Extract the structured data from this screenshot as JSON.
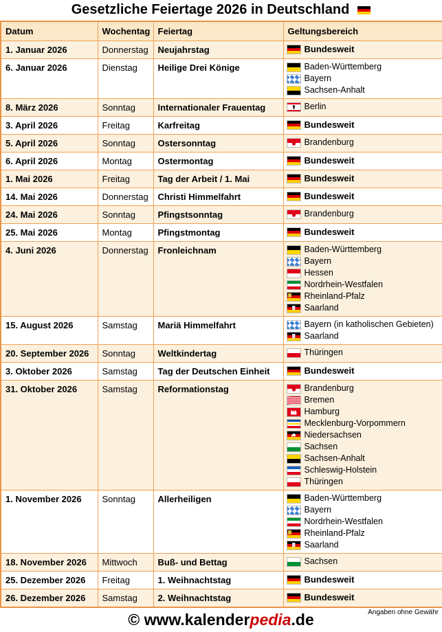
{
  "title": "Gesetzliche Feiertage 2026 in Deutschland",
  "title_flag": "german-flag",
  "table": {
    "columns": [
      "Datum",
      "Wochentag",
      "Feiertag",
      "Geltungsbereich"
    ],
    "rows": [
      {
        "date": "1. Januar 2026",
        "weekday": "Donnerstag",
        "holiday": "Neujahrstag",
        "regions": [
          {
            "flag": "de",
            "name": "Bundesweit",
            "bold": true
          }
        ]
      },
      {
        "date": "6. Januar 2026",
        "weekday": "Dienstag",
        "holiday": "Heilige Drei Könige",
        "regions": [
          {
            "flag": "bw",
            "name": "Baden-Württemberg"
          },
          {
            "flag": "by",
            "name": "Bayern"
          },
          {
            "flag": "st",
            "name": "Sachsen-Anhalt"
          }
        ]
      },
      {
        "date": "8. März 2026",
        "weekday": "Sonntag",
        "holiday": "Internationaler Frauentag",
        "regions": [
          {
            "flag": "be",
            "name": "Berlin"
          }
        ]
      },
      {
        "date": "3. April 2026",
        "weekday": "Freitag",
        "holiday": "Karfreitag",
        "regions": [
          {
            "flag": "de",
            "name": "Bundesweit",
            "bold": true
          }
        ]
      },
      {
        "date": "5. April 2026",
        "weekday": "Sonntag",
        "holiday": "Ostersonntag",
        "regions": [
          {
            "flag": "bb",
            "name": "Brandenburg"
          }
        ]
      },
      {
        "date": "6. April 2026",
        "weekday": "Montag",
        "holiday": "Ostermontag",
        "regions": [
          {
            "flag": "de",
            "name": "Bundesweit",
            "bold": true
          }
        ]
      },
      {
        "date": "1. Mai 2026",
        "weekday": "Freitag",
        "holiday": "Tag der Arbeit / 1. Mai",
        "regions": [
          {
            "flag": "de",
            "name": "Bundesweit",
            "bold": true
          }
        ]
      },
      {
        "date": "14. Mai 2026",
        "weekday": "Donnerstag",
        "holiday": "Christi Himmelfahrt",
        "regions": [
          {
            "flag": "de",
            "name": "Bundesweit",
            "bold": true
          }
        ]
      },
      {
        "date": "24. Mai 2026",
        "weekday": "Sonntag",
        "holiday": "Pfingstsonntag",
        "regions": [
          {
            "flag": "bb",
            "name": "Brandenburg"
          }
        ]
      },
      {
        "date": "25. Mai 2026",
        "weekday": "Montag",
        "holiday": "Pfingstmontag",
        "regions": [
          {
            "flag": "de",
            "name": "Bundesweit",
            "bold": true
          }
        ]
      },
      {
        "date": "4. Juni 2026",
        "weekday": "Donnerstag",
        "holiday": "Fronleichnam",
        "regions": [
          {
            "flag": "bw",
            "name": "Baden-Württemberg"
          },
          {
            "flag": "by",
            "name": "Bayern"
          },
          {
            "flag": "he",
            "name": "Hessen"
          },
          {
            "flag": "nw",
            "name": "Nordrhein-Westfalen"
          },
          {
            "flag": "rp",
            "name": "Rheinland-Pfalz"
          },
          {
            "flag": "sl",
            "name": "Saarland"
          }
        ]
      },
      {
        "date": "15. August 2026",
        "weekday": "Samstag",
        "holiday": "Mariä Himmelfahrt",
        "regions": [
          {
            "flag": "by",
            "name": "Bayern (in katholischen Gebieten)"
          },
          {
            "flag": "sl",
            "name": "Saarland"
          }
        ]
      },
      {
        "date": "20. September 2026",
        "weekday": "Sonntag",
        "holiday": "Weltkindertag",
        "regions": [
          {
            "flag": "th",
            "name": "Thüringen"
          }
        ]
      },
      {
        "date": "3. Oktober 2026",
        "weekday": "Samstag",
        "holiday": "Tag der Deutschen Einheit",
        "regions": [
          {
            "flag": "de",
            "name": "Bundesweit",
            "bold": true
          }
        ]
      },
      {
        "date": "31. Oktober 2026",
        "weekday": "Samstag",
        "holiday": "Reformationstag",
        "regions": [
          {
            "flag": "bb",
            "name": "Brandenburg"
          },
          {
            "flag": "hb",
            "name": "Bremen"
          },
          {
            "flag": "hh",
            "name": "Hamburg"
          },
          {
            "flag": "mv",
            "name": "Mecklenburg-Vorpommern"
          },
          {
            "flag": "ni",
            "name": "Niedersachsen"
          },
          {
            "flag": "sn",
            "name": "Sachsen"
          },
          {
            "flag": "st",
            "name": "Sachsen-Anhalt"
          },
          {
            "flag": "sh",
            "name": "Schleswig-Holstein"
          },
          {
            "flag": "th",
            "name": "Thüringen"
          }
        ]
      },
      {
        "date": "1. November 2026",
        "weekday": "Sonntag",
        "holiday": "Allerheiligen",
        "regions": [
          {
            "flag": "bw",
            "name": "Baden-Württemberg"
          },
          {
            "flag": "by",
            "name": "Bayern"
          },
          {
            "flag": "nw",
            "name": "Nordrhein-Westfalen"
          },
          {
            "flag": "rp",
            "name": "Rheinland-Pfalz"
          },
          {
            "flag": "sl",
            "name": "Saarland"
          }
        ]
      },
      {
        "date": "18. November 2026",
        "weekday": "Mittwoch",
        "holiday": "Buß- und Bettag",
        "regions": [
          {
            "flag": "sn",
            "name": "Sachsen"
          }
        ]
      },
      {
        "date": "25. Dezember 2026",
        "weekday": "Freitag",
        "holiday": "1. Weihnachtstag",
        "regions": [
          {
            "flag": "de",
            "name": "Bundesweit",
            "bold": true
          }
        ]
      },
      {
        "date": "26. Dezember 2026",
        "weekday": "Samstag",
        "holiday": "2. Weihnachtstag",
        "regions": [
          {
            "flag": "de",
            "name": "Bundesweit",
            "bold": true
          }
        ]
      }
    ]
  },
  "footer": {
    "disclaimer": "Angaben ohne Gewähr",
    "copyright_prefix": "© www.kalender",
    "copyright_highlight": "pedia",
    "copyright_suffix": ".de"
  },
  "colors": {
    "accent_border": "#f0a055",
    "header_bg": "#fae8c9",
    "row_alt_bg": "#fcf1de",
    "brand_red": "#cc0000",
    "flag_black": "#000000",
    "flag_red": "#dd0000",
    "flag_gold": "#ffce00"
  }
}
